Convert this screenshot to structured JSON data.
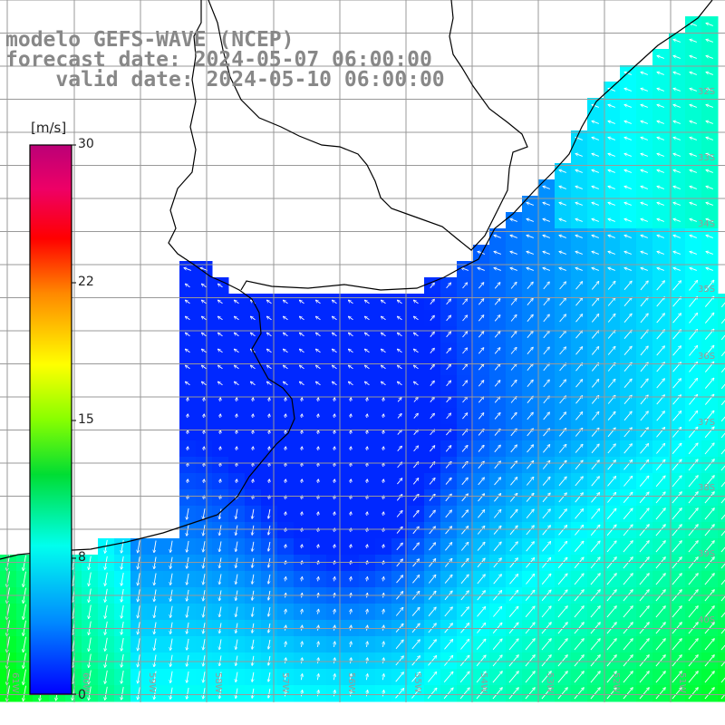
{
  "title": {
    "line1": "modelo GEFS-WAVE (NCEP)",
    "line2": "forecast date: 2024-05-07 06:00:00",
    "line3": "    valid date: 2024-05-10 06:00:00"
  },
  "colorbar": {
    "unit": "[m/s]",
    "ticks": [
      "30",
      "22",
      "15",
      "8",
      "0"
    ],
    "colors": [
      "#0000ff",
      "#00aaff",
      "#00ffff",
      "#00ff66",
      "#66ff00",
      "#ffff00",
      "#ff9900",
      "#ff0000",
      "#dd0088",
      "#aa0077"
    ]
  },
  "map": {
    "lon_labels": [
      "61W",
      "60W",
      "59W",
      "58W",
      "57W",
      "56W",
      "55W",
      "54W",
      "53W",
      "52W",
      "51W"
    ],
    "lat_labels": [
      "32S",
      "33S",
      "34S",
      "35S",
      "36S",
      "37S",
      "38S",
      "39S",
      "40S"
    ],
    "land_color": "#ffffff",
    "grid_color": "#999999",
    "coast_color": "#000000",
    "arrow_color": "#ffffff"
  }
}
